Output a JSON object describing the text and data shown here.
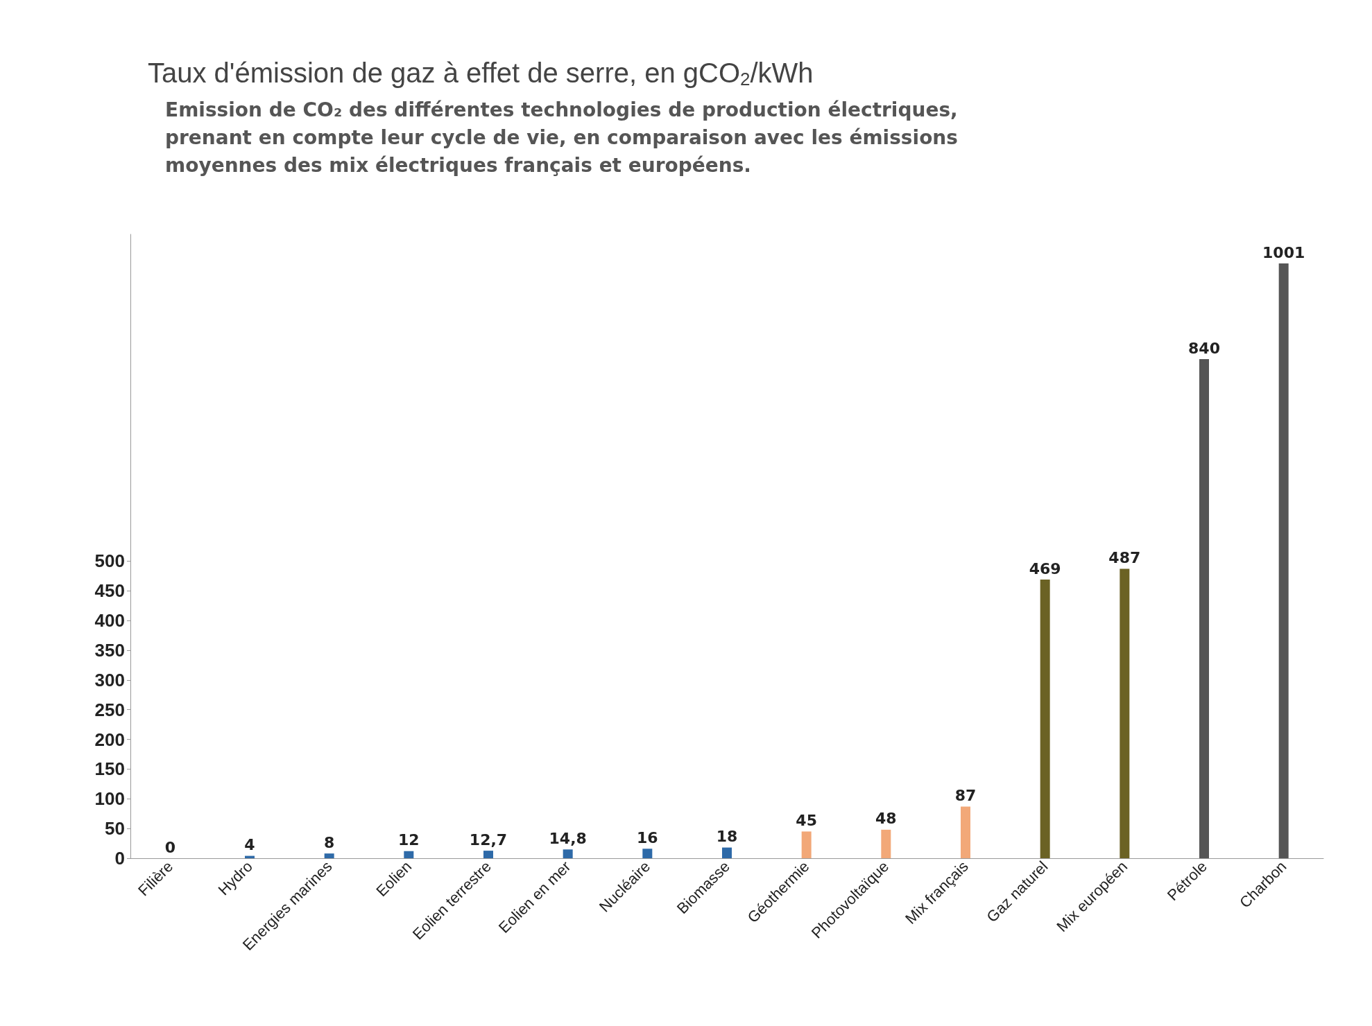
{
  "chart_data": {
    "type": "bar",
    "title": "Taux d'émission de gaz à effet de serre, en gCO$_{2}$/kWh",
    "subtitle": "Emission de CO₂ des différentes technologies de production électriques,\nprenant en compte leur cycle de vie, en comparaison avec les émissions\nmoyennes des mix électriques français et européens.",
    "categories": [
      "Filière",
      "Hydro",
      "Energies marines",
      "Eolien",
      "Eolien terrestre",
      "Eolien en mer",
      "Nucléaire",
      "Biomasse",
      "Géothermie",
      "Photovoltaïque",
      "Mix français",
      "Gaz naturel",
      "Mix européen",
      "Pétrole",
      "Charbon"
    ],
    "values": [
      0,
      4,
      8,
      12,
      12.7,
      14.8,
      16,
      18,
      45,
      48,
      87,
      469,
      487,
      840,
      1001
    ],
    "value_labels": [
      "0",
      "4",
      "8",
      "12",
      "12,7",
      "14,8",
      "16",
      "18",
      "45",
      "48",
      "87",
      "469",
      "487",
      "840",
      "1001"
    ],
    "colors": [
      "#2e6aa8",
      "#2e6aa8",
      "#2e6aa8",
      "#2e6aa8",
      "#2e6aa8",
      "#2e6aa8",
      "#2e6aa8",
      "#2e6aa8",
      "#f2a878",
      "#f2a878",
      "#f2a878",
      "#6b6224",
      "#6b6224",
      "#555555",
      "#555555"
    ],
    "ylim": [
      0,
      1050
    ],
    "yticks": [
      0,
      50,
      100,
      150,
      200,
      250,
      300,
      350,
      400,
      450,
      500
    ],
    "grid": false
  }
}
